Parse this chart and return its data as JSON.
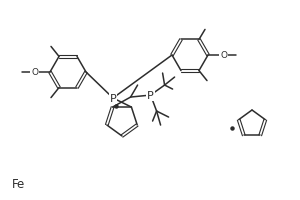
{
  "bg_color": "#ffffff",
  "C": "#2d2d2d",
  "lw": 1.1,
  "figsize": [
    3.0,
    2.01
  ],
  "dpi": 100,
  "xlim": [
    0,
    300
  ],
  "ylim": [
    0,
    201
  ]
}
